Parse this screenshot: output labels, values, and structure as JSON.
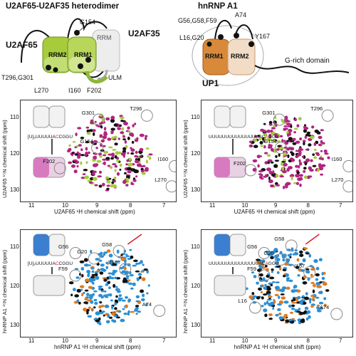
{
  "top_left": {
    "title": "U2AF65-U2AF35 heterodimer",
    "protein": "U2AF65",
    "partner": "U2AF35",
    "domains": [
      "RRM2",
      "RRM1",
      "RRM"
    ],
    "motif": "ULM",
    "residues": [
      "G154",
      "T296,G301",
      "L270",
      "I160",
      "F202"
    ],
    "colors": {
      "u2af65": "#a6cc3c",
      "u2af35": "#e6e6e6",
      "dot": "#000000"
    }
  },
  "top_right": {
    "title": "hnRNP A1",
    "domains": [
      "RRM1",
      "RRM2"
    ],
    "module": "UP1",
    "tail": "G-rich domain",
    "residues": [
      "G56,G58,F59",
      "A74",
      "L16,G20",
      "Y167"
    ],
    "colors": {
      "rrm1": "#d88a3a",
      "rrm2": "#f2dcc6"
    }
  },
  "panels": [
    {
      "id": "A",
      "xlabel": "U2AF65 ¹H chemical shift (ppm)",
      "ylabel": "U2AF65 ¹⁵N chemical shift (ppm)",
      "xticks": [
        "11",
        "10",
        "9",
        "8",
        "7"
      ],
      "yticks": [
        "110",
        "120",
        "130"
      ],
      "rna_prefix": "[U]₈UUUUUA",
      "rna_hl": "C",
      "rna_suffix": "CGGU",
      "annotations": [
        "G301",
        "T296",
        "G154",
        "I160",
        "F202",
        "L270"
      ],
      "colors": {
        "peak_main": "#b0257f",
        "peak_ref": "#a6cc3c",
        "box": "#d87ac0"
      }
    },
    {
      "id": "B",
      "xlabel": "U2AF65 ¹H chemical shift (ppm)",
      "ylabel": "U2AF65 ¹⁵N chemical shift (ppm)",
      "xticks": [
        "11",
        "10",
        "9",
        "8",
        "7"
      ],
      "yticks": [
        "110",
        "120",
        "130"
      ],
      "rna_prefix": "UUUUUUUUUUUUUUUAC",
      "rna_hl": "A",
      "rna_suffix": "GGU",
      "annotations": [
        "G301",
        "T296",
        "G154",
        "F202",
        "I160",
        "L270"
      ],
      "colors": {
        "peak_main": "#b0257f",
        "peak_ref": "#a6cc3c",
        "box": "#d87ac0"
      }
    },
    {
      "id": "C",
      "xlabel": "hnRNP A1 ¹H chemical shift (ppm)",
      "ylabel": "hnRNP A1 ¹⁵N chemical shift (ppm)",
      "xticks": [
        "11",
        "10",
        "9",
        "8",
        "7"
      ],
      "yticks": [
        "110",
        "120",
        "130"
      ],
      "rna_prefix": "[U]₈UUUUUA",
      "rna_hl": "C",
      "rna_suffix": "CGGU",
      "annotations": [
        "G56",
        "G20",
        "G58",
        "F59",
        "Y167",
        "A74"
      ],
      "colors": {
        "peak_main": "#2a8fd6",
        "peak_ref": "#e07b20",
        "box": "#3c7fd0"
      }
    },
    {
      "id": "D",
      "xlabel": "hnRNP A1 ¹H chemical shift (ppm)",
      "ylabel": "hnRNP A1 ¹⁵N chemical shift (ppm)",
      "xticks": [
        "11",
        "10",
        "9",
        "8",
        "7"
      ],
      "yticks": [
        "110",
        "120",
        "130"
      ],
      "rna_prefix": "UUUUUUUUUUUUUUUAC",
      "rna_hl": "A",
      "rna_suffix": "GGU",
      "annotations": [
        "G56",
        "G58",
        "G20",
        "F59",
        "Y167",
        "L16",
        "A74"
      ],
      "colors": {
        "peak_main": "#2a8fd6",
        "peak_ref": "#e07b20",
        "box": "#3c7fd0"
      }
    }
  ]
}
